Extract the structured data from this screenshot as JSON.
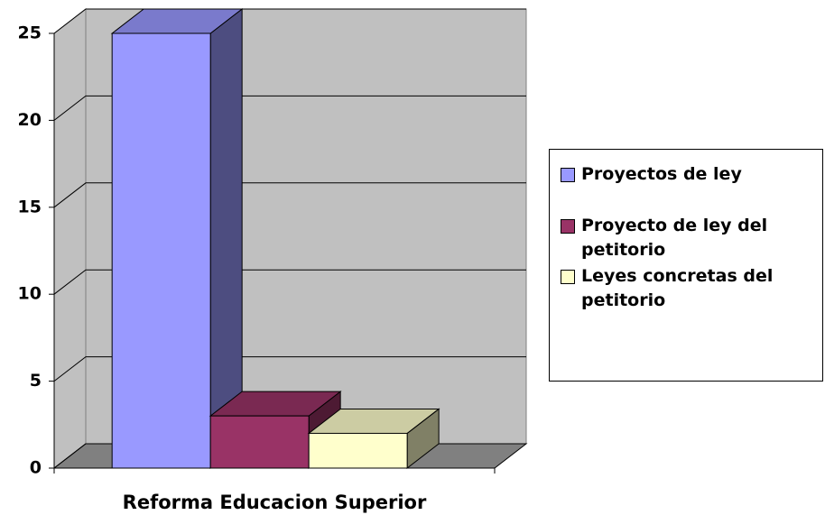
{
  "chart_data": {
    "type": "bar",
    "categories": [
      "Reforma Educacion Superior"
    ],
    "series": [
      {
        "name": "Proyectos de ley",
        "color": "#9999ff",
        "values": [
          25
        ]
      },
      {
        "name": "Proyecto de ley del petitorio",
        "color": "#993366",
        "values": [
          3
        ]
      },
      {
        "name": "Leyes concretas del petitorio",
        "color": "#ffffcc",
        "values": [
          2
        ]
      }
    ],
    "ylim": [
      0,
      25
    ],
    "yticks": [
      0,
      5,
      10,
      15,
      20,
      25
    ],
    "grid": true,
    "legend": "right"
  }
}
